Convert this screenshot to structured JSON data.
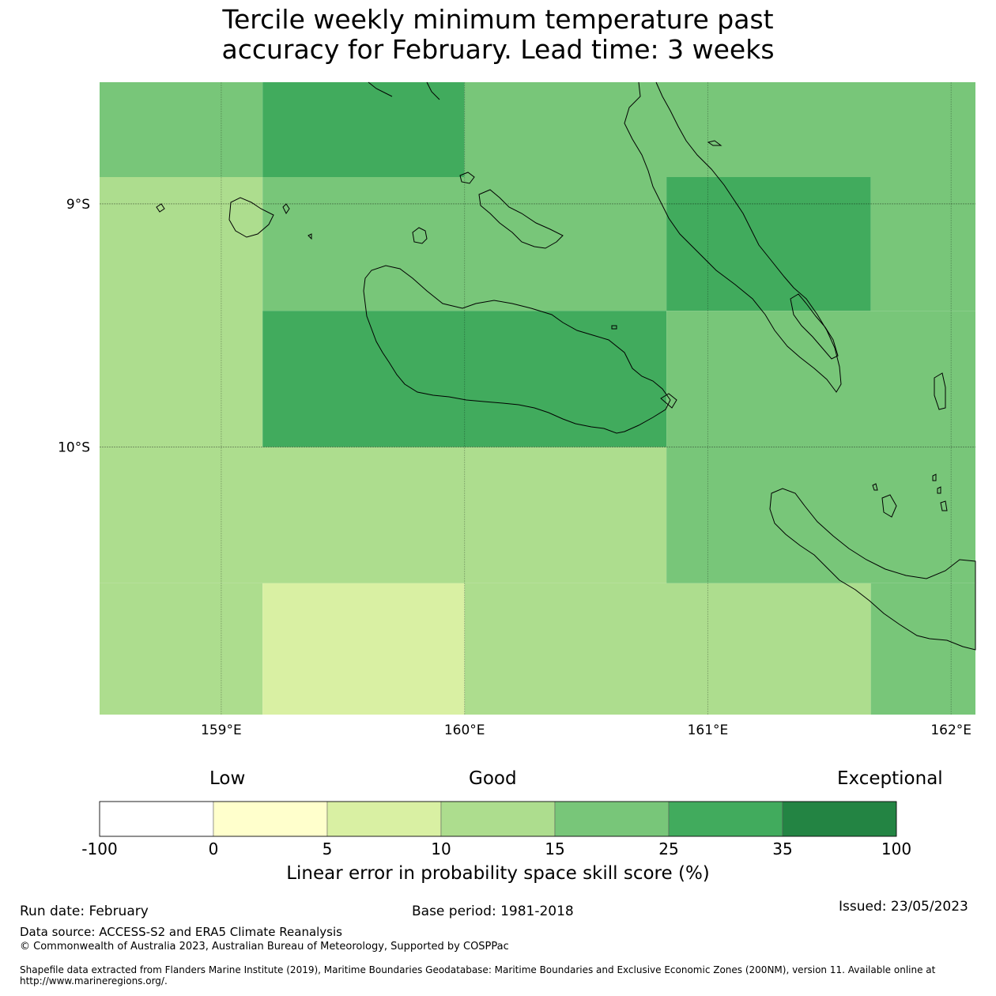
{
  "title_line1": "Tercile weekly minimum temperature past",
  "title_line2": "accuracy for February. Lead time: 3 weeks",
  "map": {
    "lon_range": [
      158.5,
      162.1
    ],
    "lat_range": [
      -8.5,
      -11.1
    ],
    "x_ticks": [
      {
        "value": 159,
        "label": "159°E"
      },
      {
        "value": 160,
        "label": "160°E"
      },
      {
        "value": 161,
        "label": "161°E"
      },
      {
        "value": 162,
        "label": "162°E"
      }
    ],
    "y_ticks": [
      {
        "value": -9,
        "label": "9°S"
      },
      {
        "value": -10,
        "label": "10°S"
      }
    ],
    "cells": [
      {
        "lon": [
          158.5,
          159.17
        ],
        "lat": [
          -8.5,
          -8.89
        ],
        "class": "15-25"
      },
      {
        "lon": [
          159.17,
          160.0
        ],
        "lat": [
          -8.5,
          -8.89
        ],
        "class": "25-35"
      },
      {
        "lon": [
          160.0,
          162.1
        ],
        "lat": [
          -8.5,
          -8.89
        ],
        "class": "15-25"
      },
      {
        "lon": [
          158.5,
          159.17
        ],
        "lat": [
          -8.89,
          -10.0
        ],
        "class": "10-15"
      },
      {
        "lon": [
          159.17,
          160.83
        ],
        "lat": [
          -8.89,
          -9.44
        ],
        "class": "15-25"
      },
      {
        "lon": [
          160.83,
          161.67
        ],
        "lat": [
          -8.89,
          -9.44
        ],
        "class": "25-35"
      },
      {
        "lon": [
          161.67,
          162.1
        ],
        "lat": [
          -8.89,
          -9.44
        ],
        "class": "15-25"
      },
      {
        "lon": [
          159.17,
          160.83
        ],
        "lat": [
          -9.44,
          -10.0
        ],
        "class": "25-35"
      },
      {
        "lon": [
          160.83,
          162.1
        ],
        "lat": [
          -9.44,
          -10.0
        ],
        "class": "15-25"
      },
      {
        "lon": [
          158.5,
          160.83
        ],
        "lat": [
          -10.0,
          -10.56
        ],
        "class": "10-15"
      },
      {
        "lon": [
          160.83,
          162.1
        ],
        "lat": [
          -10.0,
          -10.56
        ],
        "class": "15-25"
      },
      {
        "lon": [
          158.5,
          159.17
        ],
        "lat": [
          -10.56,
          -11.1
        ],
        "class": "10-15"
      },
      {
        "lon": [
          159.17,
          160.0
        ],
        "lat": [
          -10.56,
          -11.1
        ],
        "class": "5-10"
      },
      {
        "lon": [
          160.0,
          161.67
        ],
        "lat": [
          -10.56,
          -11.1
        ],
        "class": "10-15"
      },
      {
        "lon": [
          161.67,
          162.1
        ],
        "lat": [
          -10.56,
          -11.1
        ],
        "class": "15-25"
      }
    ],
    "land_color": "none",
    "coast_color": "#000000"
  },
  "colorbar": {
    "low": "Low",
    "good": "Good",
    "exceptional": "Exceptional",
    "label": "Linear error in probability space skill score (%)",
    "ticks": [
      "-100",
      "0",
      "5",
      "10",
      "15",
      "25",
      "35",
      "100"
    ],
    "bins": [
      {
        "class": "-100-0",
        "color": "#ffffff"
      },
      {
        "class": "0-5",
        "color": "#ffffcc"
      },
      {
        "class": "5-10",
        "color": "#d9f0a3"
      },
      {
        "class": "10-15",
        "color": "#addd8e"
      },
      {
        "class": "15-25",
        "color": "#78c679"
      },
      {
        "class": "25-35",
        "color": "#41ab5d"
      },
      {
        "class": "35-100",
        "color": "#238443"
      }
    ]
  },
  "footer": {
    "run_date": "Run date: February",
    "base_period": "Base period: 1981-2018",
    "issued": "Issued: 23/05/2023",
    "data_source": "Data source: ACCESS-S2 and ERA5 Climate Reanalysis",
    "copyright": "© Commonwealth of Australia 2023, Australian Bureau of Meteorology, Supported by COSPPac",
    "shapefile": "Shapefile data extracted from Flanders Marine Institute (2019), Maritime Boundaries Geodatabase: Maritime Boundaries and Exclusive Economic Zones (200NM), version 11. Available online at http://www.marineregions.org/."
  }
}
